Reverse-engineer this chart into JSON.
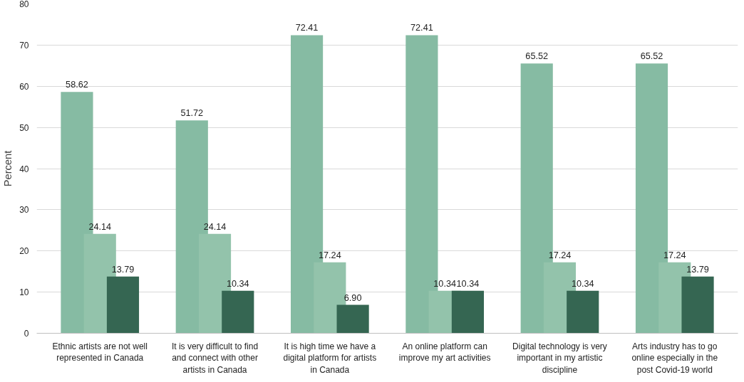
{
  "chart_data": {
    "type": "bar",
    "ylabel": "Percent",
    "categories": [
      "Ethnic artists are not well represented in Canada",
      "It is very difficult to find and connect with other artists in Canada",
      "It is high time we have a digital platform for artists in Canada",
      "An online platform can improve my art activities",
      "Digital technology is very important in my artistic discipline",
      "Arts industry has to go online especially in the post Covid-19 world"
    ],
    "series": [
      {
        "color": "#86bba3",
        "values": [
          58.62,
          51.72,
          72.41,
          72.41,
          65.52,
          65.52
        ],
        "value_labels": [
          "58.62",
          "51.72",
          "72.41",
          "72.41",
          "65.52",
          "65.52"
        ]
      },
      {
        "color": "#93c3ab",
        "values": [
          24.14,
          24.14,
          17.24,
          10.34,
          17.24,
          17.24
        ],
        "value_labels": [
          "24.14",
          "24.14",
          "17.24",
          "10.34",
          "17.24",
          "17.24"
        ]
      },
      {
        "color": "#356652",
        "values": [
          13.79,
          10.34,
          6.9,
          10.34,
          10.34,
          13.79
        ],
        "value_labels": [
          "13.79",
          "10.34",
          "6.90",
          "10.34",
          "10.34",
          "13.79"
        ]
      }
    ],
    "ylim": [
      0,
      80
    ],
    "yticks": [
      0,
      10,
      20,
      30,
      40,
      50,
      60,
      70,
      80
    ],
    "grid": "y"
  }
}
